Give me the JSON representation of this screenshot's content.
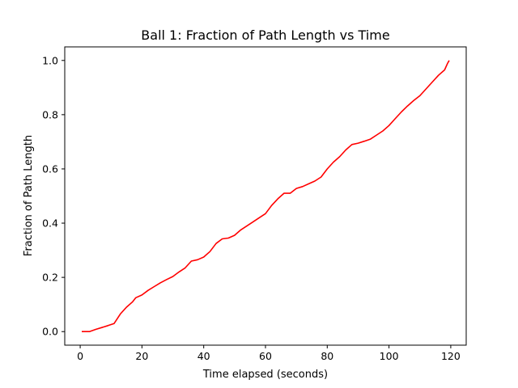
{
  "chart_data": {
    "type": "line",
    "title": "Ball 1: Fraction of Path Length vs Time",
    "xlabel": "Time elapsed (seconds)",
    "ylabel": "Fraction of Path Length",
    "xlim": [
      -5,
      125
    ],
    "ylim": [
      -0.05,
      1.05
    ],
    "xticks": [
      0,
      20,
      40,
      60,
      80,
      100,
      120
    ],
    "yticks": [
      0.0,
      0.2,
      0.4,
      0.6,
      0.8,
      1.0
    ],
    "xtick_labels": [
      "0",
      "20",
      "40",
      "60",
      "80",
      "100",
      "120"
    ],
    "ytick_labels": [
      "0.0",
      "0.2",
      "0.4",
      "0.6",
      "0.8",
      "1.0"
    ],
    "grid": false,
    "series": [
      {
        "color": "#ff0000",
        "x": [
          0.5,
          3,
          5,
          7,
          9,
          11,
          13,
          15,
          17,
          18,
          20,
          22,
          24,
          26,
          28,
          30,
          32,
          34,
          36,
          38,
          40,
          42,
          44,
          46,
          48,
          50,
          52,
          54,
          56,
          58,
          60,
          62,
          64,
          66,
          68,
          70,
          72,
          74,
          76,
          78,
          80,
          82,
          84,
          86,
          88,
          90,
          92,
          94,
          96,
          98,
          100,
          102,
          104,
          106,
          108,
          110,
          112,
          114,
          116,
          118,
          119,
          119.5
        ],
        "y": [
          0.0,
          0.0,
          0.008,
          0.015,
          0.022,
          0.03,
          0.065,
          0.09,
          0.11,
          0.125,
          0.135,
          0.152,
          0.166,
          0.18,
          0.192,
          0.203,
          0.22,
          0.235,
          0.26,
          0.265,
          0.275,
          0.295,
          0.325,
          0.342,
          0.345,
          0.355,
          0.375,
          0.39,
          0.405,
          0.42,
          0.435,
          0.465,
          0.49,
          0.51,
          0.51,
          0.528,
          0.535,
          0.545,
          0.555,
          0.57,
          0.6,
          0.625,
          0.645,
          0.67,
          0.69,
          0.695,
          0.702,
          0.71,
          0.725,
          0.74,
          0.76,
          0.785,
          0.81,
          0.832,
          0.852,
          0.87,
          0.895,
          0.92,
          0.945,
          0.965,
          0.99,
          1.0
        ]
      }
    ]
  }
}
